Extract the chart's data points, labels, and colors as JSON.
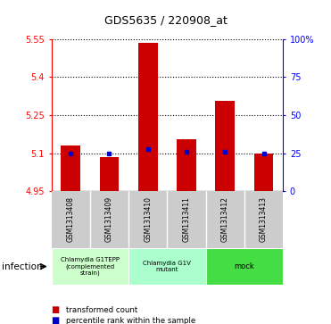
{
  "title": "GDS5635 / 220908_at",
  "samples": [
    "GSM1313408",
    "GSM1313409",
    "GSM1313410",
    "GSM1313411",
    "GSM1313412",
    "GSM1313413"
  ],
  "bar_values": [
    5.13,
    5.085,
    5.535,
    5.155,
    5.305,
    5.1
  ],
  "bar_base": 4.95,
  "percentile_values": [
    5.1,
    5.1,
    5.115,
    5.105,
    5.105,
    5.1
  ],
  "ylim": [
    4.95,
    5.55
  ],
  "yticks_left": [
    4.95,
    5.1,
    5.25,
    5.4,
    5.55
  ],
  "ytick_labels_left": [
    "4.95",
    "5.1",
    "5.25",
    "5.4",
    "5.55"
  ],
  "yticks_right_pct": [
    0,
    25,
    50,
    75,
    100
  ],
  "ytick_labels_right": [
    "0",
    "25",
    "50",
    "75",
    "100%"
  ],
  "bar_color": "#cc0000",
  "percentile_color": "#0000cc",
  "group_info": [
    {
      "range": [
        0,
        2
      ],
      "label": "Chlamydia G1TEPP\n(complemented\nstrain)",
      "color": "#ccffcc"
    },
    {
      "range": [
        2,
        4
      ],
      "label": "Chlamydia G1V\nmutant",
      "color": "#aaffcc"
    },
    {
      "range": [
        4,
        6
      ],
      "label": "mock",
      "color": "#44dd44"
    }
  ],
  "infection_label": "infection",
  "legend_bar_label": "transformed count",
  "legend_pct_label": "percentile rank within the sample",
  "sample_area_color": "#cccccc",
  "plot_bg_color": "#ffffff"
}
